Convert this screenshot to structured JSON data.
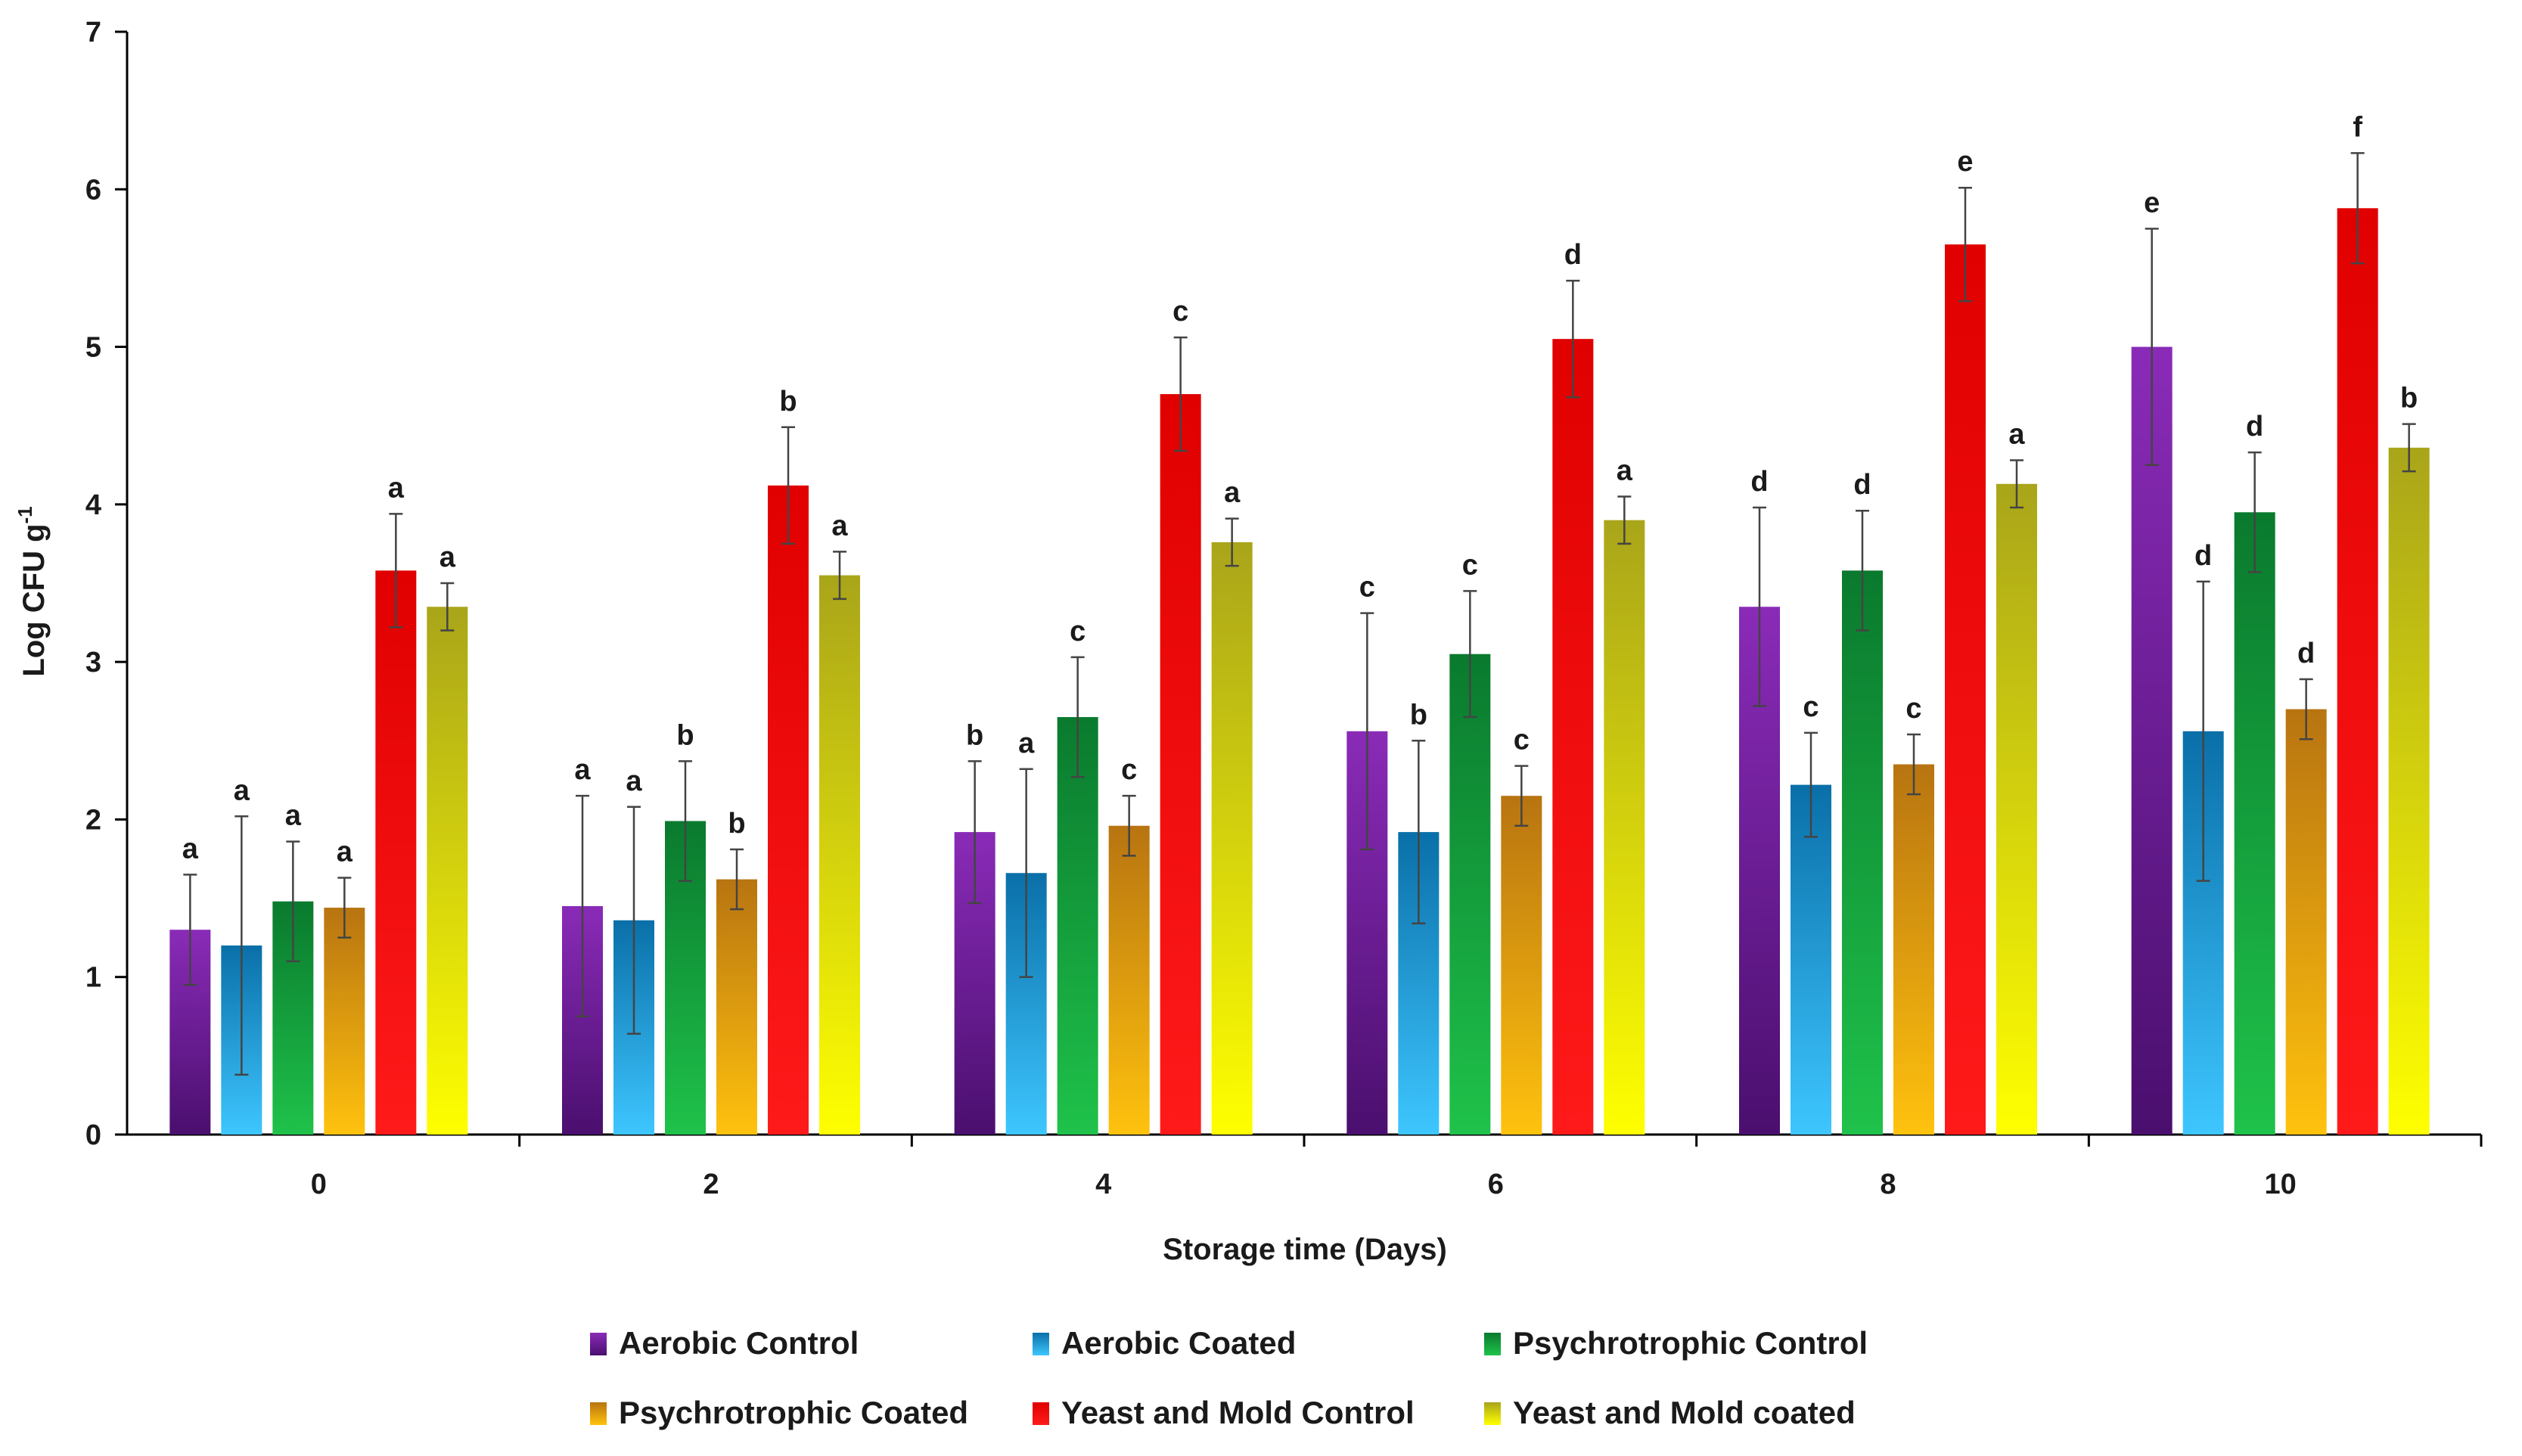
{
  "chart_data": {
    "type": "bar",
    "title": "",
    "xlabel": "Storage time (Days)",
    "ylabel": "Log CFU g",
    "ylabel_superscript": "-1",
    "ylim": [
      0,
      7
    ],
    "yticks": [
      "0",
      "1",
      "2",
      "3",
      "4",
      "5",
      "6",
      "7"
    ],
    "categories": [
      "0",
      "2",
      "4",
      "6",
      "8",
      "10"
    ],
    "legend_position": "bottom",
    "series": [
      {
        "name": "Aerobic Control",
        "top_color": "#8a2bb8",
        "bottom_color": "#4a0f6e",
        "values": [
          1.3,
          1.45,
          1.92,
          2.56,
          3.35,
          5.0
        ],
        "errors": [
          0.35,
          0.7,
          0.45,
          0.75,
          0.63,
          0.75
        ],
        "letters": [
          "a",
          "a",
          "b",
          "c",
          "d",
          "e"
        ]
      },
      {
        "name": "Aerobic Coated",
        "top_color": "#0a6fa8",
        "bottom_color": "#3ec6ff",
        "values": [
          1.2,
          1.36,
          1.66,
          1.92,
          2.22,
          2.56
        ],
        "errors": [
          0.82,
          0.72,
          0.66,
          0.58,
          0.33,
          0.95
        ],
        "letters": [
          "a",
          "a",
          "a",
          "b",
          "c",
          "d"
        ]
      },
      {
        "name": "Psychrotrophic Control",
        "top_color": "#0a7a2e",
        "bottom_color": "#1fc24a",
        "values": [
          1.48,
          1.99,
          2.65,
          3.05,
          3.58,
          3.95
        ],
        "errors": [
          0.38,
          0.38,
          0.38,
          0.4,
          0.38,
          0.38
        ],
        "letters": [
          "a",
          "b",
          "c",
          "c",
          "d",
          "d"
        ]
      },
      {
        "name": "Psychrotrophic Coated",
        "top_color": "#b87410",
        "bottom_color": "#ffc20e",
        "values": [
          1.44,
          1.62,
          1.96,
          2.15,
          2.35,
          2.7
        ],
        "errors": [
          0.19,
          0.19,
          0.19,
          0.19,
          0.19,
          0.19
        ],
        "letters": [
          "a",
          "b",
          "c",
          "c",
          "c",
          "d"
        ]
      },
      {
        "name": "Yeast and Mold Control",
        "top_color": "#e00000",
        "bottom_color": "#ff1a1a",
        "values": [
          3.58,
          4.12,
          4.7,
          5.05,
          5.65,
          5.88
        ],
        "errors": [
          0.36,
          0.37,
          0.36,
          0.37,
          0.36,
          0.35
        ],
        "letters": [
          "a",
          "b",
          "c",
          "d",
          "e",
          "f"
        ]
      },
      {
        "name": "Yeast and Mold coated",
        "top_color": "#a9a51a",
        "bottom_color": "#ffff00",
        "values": [
          3.35,
          3.55,
          3.76,
          3.9,
          4.13,
          4.36
        ],
        "errors": [
          0.15,
          0.15,
          0.15,
          0.15,
          0.15,
          0.15
        ],
        "letters": [
          "a",
          "a",
          "a",
          "a",
          "a",
          "b"
        ]
      }
    ]
  }
}
